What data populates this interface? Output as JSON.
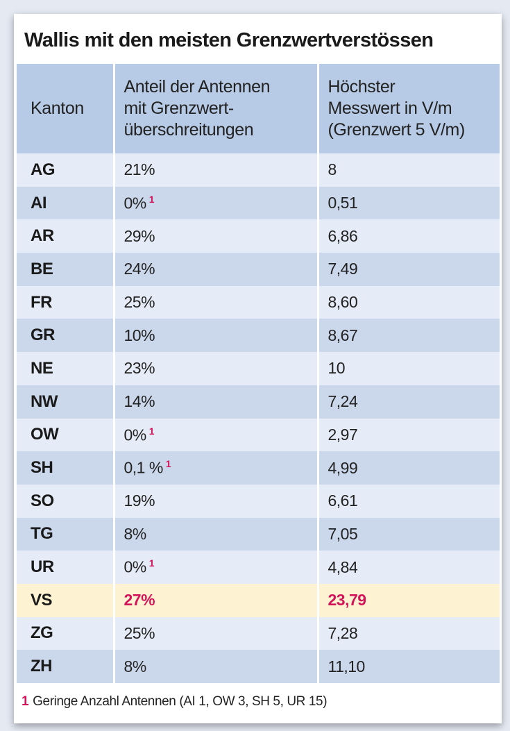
{
  "title": "Wallis mit den meisten Grenzwertverstössen",
  "headers": [
    "Kanton",
    "Anteil der Antennen mit Grenzwert-überschreitungen",
    "Höchster Messwert in V/m (Grenzwert 5 V/m)"
  ],
  "header_lines": {
    "col2": [
      "Anteil der Antennen",
      "mit Grenzwert-",
      "überschreitungen"
    ],
    "col3": [
      "Höchster",
      "Messwert in V/m",
      "(Grenzwert 5 V/m)"
    ]
  },
  "rows": [
    {
      "kanton": "AG",
      "anteil": "21%",
      "footnote": "",
      "messwert": "8"
    },
    {
      "kanton": "AI",
      "anteil": "0%",
      "footnote": "1",
      "messwert": "0,51"
    },
    {
      "kanton": "AR",
      "anteil": "29%",
      "footnote": "",
      "messwert": "6,86"
    },
    {
      "kanton": "BE",
      "anteil": "24%",
      "footnote": "",
      "messwert": "7,49"
    },
    {
      "kanton": "FR",
      "anteil": "25%",
      "footnote": "",
      "messwert": "8,60"
    },
    {
      "kanton": "GR",
      "anteil": "10%",
      "footnote": "",
      "messwert": "8,67"
    },
    {
      "kanton": "NE",
      "anteil": "23%",
      "footnote": "",
      "messwert": "10"
    },
    {
      "kanton": "NW",
      "anteil": "14%",
      "footnote": "",
      "messwert": "7,24"
    },
    {
      "kanton": "OW",
      "anteil": "0%",
      "footnote": "1",
      "messwert": "2,97"
    },
    {
      "kanton": "SH",
      "anteil": "0,1 %",
      "footnote": "1",
      "messwert": "4,99"
    },
    {
      "kanton": "SO",
      "anteil": "19%",
      "footnote": "",
      "messwert": "6,61"
    },
    {
      "kanton": "TG",
      "anteil": "8%",
      "footnote": "",
      "messwert": "7,05"
    },
    {
      "kanton": "UR",
      "anteil": "0%",
      "footnote": "1",
      "messwert": "4,84"
    },
    {
      "kanton": "VS",
      "anteil": "27%",
      "footnote": "",
      "messwert": "23,79",
      "highlight": true
    },
    {
      "kanton": "ZG",
      "anteil": "25%",
      "footnote": "",
      "messwert": "7,28"
    },
    {
      "kanton": "ZH",
      "anteil": "8%",
      "footnote": "",
      "messwert": "11,10"
    }
  ],
  "footnote": {
    "marker": "1",
    "text": "Geringe Anzahl Antennen (AI 1, OW 3, SH 5, UR 15)"
  },
  "colors": {
    "accent": "#d4145a",
    "header_bg": "#b8cbe6",
    "row_light": "#e6ecf7",
    "row_dark": "#cbd8ec",
    "highlight_bg": "#fdf3d2"
  }
}
